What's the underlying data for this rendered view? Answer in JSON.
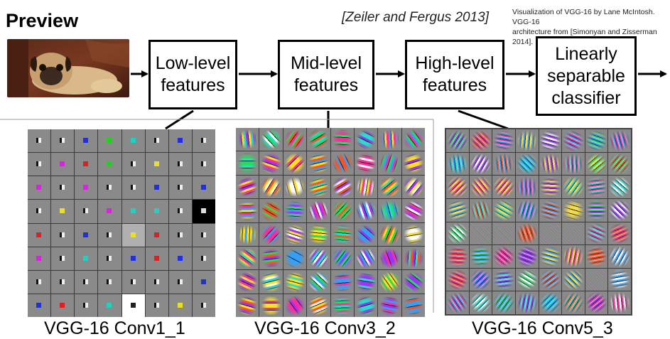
{
  "header": {
    "title": "Preview",
    "citation": "[Zeiler and Fergus 2013]",
    "credit_line1": "Visualization of VGG-16 by Lane McIntosh. VGG-16",
    "credit_line2": "architecture from [Simonyan and Zisserman 2014]."
  },
  "pipeline": {
    "stages": [
      {
        "line1": "Low-level",
        "line2": "features"
      },
      {
        "line1": "Mid-level",
        "line2": "features"
      },
      {
        "line1": "High-level",
        "line2": "features"
      },
      {
        "line1": "Linearly",
        "line2": "separable",
        "line3": "classifier"
      }
    ]
  },
  "panels": [
    {
      "caption": "VGG-16 Conv1_1"
    },
    {
      "caption": "VGG-16 Conv3_2"
    },
    {
      "caption": "VGG-16 Conv5_3"
    }
  ],
  "colors": {
    "filter_bg": "#8a8a8a",
    "grid_line": "#3a3a3a",
    "conv1_dots": [
      "#e8e020",
      "#2030e0",
      "#e020e0",
      "#20d020",
      "#e02020",
      "#20d0c0"
    ]
  }
}
